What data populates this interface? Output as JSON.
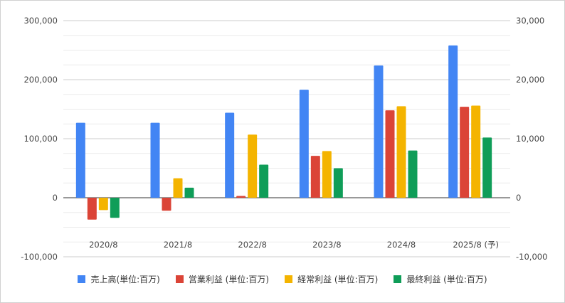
{
  "chart_data": {
    "type": "bar",
    "categories": [
      "2020/8",
      "2021/8",
      "2022/8",
      "2023/8",
      "2024/8",
      "2025/8 (予)"
    ],
    "series": [
      {
        "name": "売上高(単位:百万)",
        "axis": "left",
        "color": "#4285F4",
        "values": [
          127000,
          127000,
          144000,
          183000,
          224000,
          258000
        ]
      },
      {
        "name": "営業利益 (単位:百万)",
        "axis": "right",
        "color": "#DB4437",
        "values": [
          -3700,
          -2200,
          300,
          7100,
          14800,
          15400
        ]
      },
      {
        "name": "経常利益 (単位:百万)",
        "axis": "right",
        "color": "#F4B400",
        "values": [
          -2100,
          3300,
          10700,
          7900,
          15500,
          15600
        ]
      },
      {
        "name": "最終利益 (単位:百万)",
        "axis": "right",
        "color": "#0F9D58",
        "values": [
          -3400,
          1700,
          5600,
          5000,
          8000,
          10200
        ]
      }
    ],
    "left_axis": {
      "ylim": [
        -100000,
        300000
      ],
      "ticks": [
        -100000,
        0,
        100000,
        200000,
        300000
      ],
      "tick_labels": [
        "-100,000",
        "0",
        "100,000",
        "200,000",
        "300,000"
      ]
    },
    "right_axis": {
      "ylim": [
        -10000,
        30000
      ],
      "ticks": [
        -10000,
        0,
        10000,
        20000,
        30000
      ],
      "tick_labels": [
        "-10,000",
        "0",
        "10,000",
        "20,000",
        "30,000"
      ]
    },
    "grid": true,
    "legend_position": "bottom"
  }
}
